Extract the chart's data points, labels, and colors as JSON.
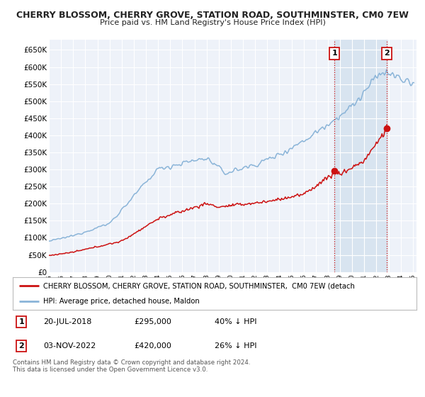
{
  "title": "CHERRY BLOSSOM, CHERRY GROVE, STATION ROAD, SOUTHMINSTER, CM0 7EW",
  "subtitle": "Price paid vs. HM Land Registry's House Price Index (HPI)",
  "ylim": [
    0,
    680000
  ],
  "yticks": [
    0,
    50000,
    100000,
    150000,
    200000,
    250000,
    300000,
    350000,
    400000,
    450000,
    500000,
    550000,
    600000,
    650000
  ],
  "ytick_labels": [
    "£0",
    "£50K",
    "£100K",
    "£150K",
    "£200K",
    "£250K",
    "£300K",
    "£350K",
    "£400K",
    "£450K",
    "£500K",
    "£550K",
    "£600K",
    "£650K"
  ],
  "background_color": "#ffffff",
  "plot_bg_color": "#eef2f9",
  "shade_color": "#d8e4f0",
  "grid_color": "#ffffff",
  "hpi_color": "#8ab4d8",
  "price_color": "#cc1111",
  "annotation1": {
    "label": "1",
    "date": "20-JUL-2018",
    "price": "£295,000",
    "pct": "40% ↓ HPI"
  },
  "annotation2": {
    "label": "2",
    "date": "03-NOV-2022",
    "price": "£420,000",
    "pct": "26% ↓ HPI"
  },
  "legend_line1": "CHERRY BLOSSOM, CHERRY GROVE, STATION ROAD, SOUTHMINSTER,  CM0 7EW (detach",
  "legend_line2": "HPI: Average price, detached house, Maldon",
  "footer": "Contains HM Land Registry data © Crown copyright and database right 2024.\nThis data is licensed under the Open Government Licence v3.0.",
  "marker1_year": 2018.55,
  "marker2_year": 2022.84,
  "marker1_price": 295000,
  "marker2_price": 420000
}
